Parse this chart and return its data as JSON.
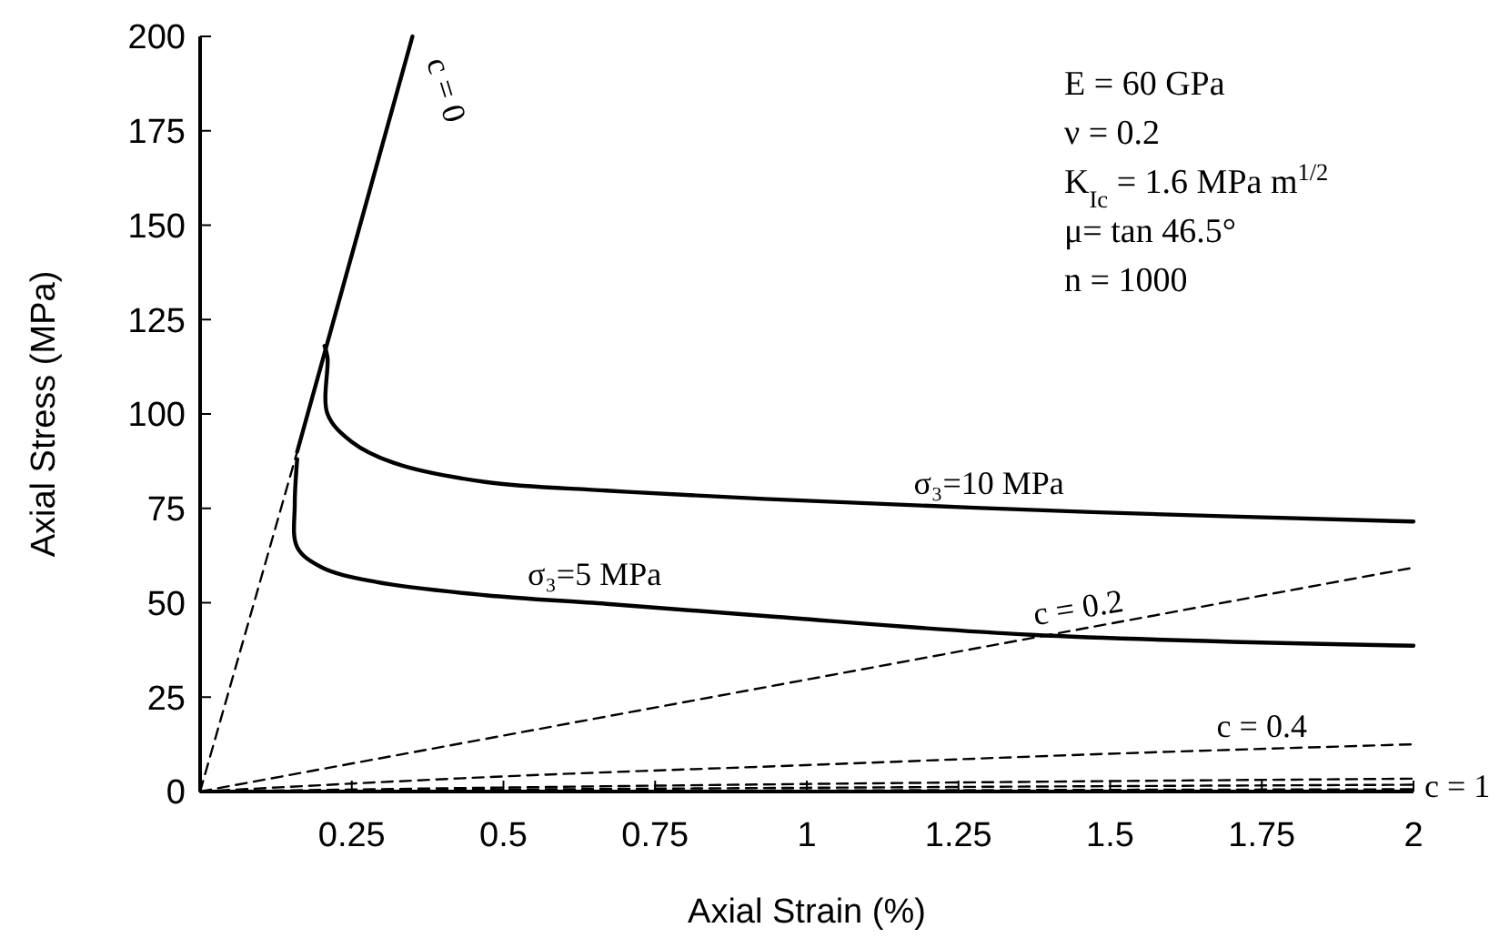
{
  "chart_data": {
    "type": "line",
    "xlabel": "Axial Strain (%)",
    "ylabel": "Axial Stress (MPa)",
    "xlim": [
      0,
      2
    ],
    "ylim": [
      0,
      200
    ],
    "xticks": [
      0.25,
      0.5,
      0.75,
      1,
      1.25,
      1.5,
      1.75,
      2
    ],
    "yticks": [
      0,
      25,
      50,
      75,
      100,
      125,
      150,
      175,
      200
    ],
    "grid": false,
    "marker": "none",
    "series": [
      {
        "color": "#000000",
        "line_style": "dashed",
        "x": [
          0,
          0.16
        ],
        "values": [
          0,
          90
        ]
      },
      {
        "name": "c = 0",
        "color": "#000000",
        "line_style": "solid",
        "x": [
          0.16,
          0.35
        ],
        "values": [
          90,
          200
        ]
      },
      {
        "name": "σ₃=10 MPa",
        "color": "#000000",
        "line_style": "solid",
        "x": [
          0.205,
          0.21,
          0.21,
          0.25,
          0.32,
          0.47,
          0.67,
          0.93,
          1.47,
          2
        ],
        "values": [
          118,
          115,
          100,
          92.6,
          87,
          82,
          79.7,
          77.5,
          74,
          71.5
        ]
      },
      {
        "name": "σ₃=5 MPa",
        "color": "#000000",
        "line_style": "solid",
        "x": [
          0.16,
          0.156,
          0.16,
          0.2,
          0.29,
          0.47,
          0.67,
          0.93,
          1.37,
          2
        ],
        "values": [
          88,
          76,
          64.7,
          59.4,
          55.5,
          52,
          49.7,
          46.5,
          41.5,
          38.6
        ]
      },
      {
        "name": "c = 0.2",
        "color": "#000000",
        "line_style": "dashed",
        "x": [
          0,
          2
        ],
        "values": [
          0,
          59.3
        ]
      },
      {
        "name": "c = 0.4",
        "color": "#000000",
        "line_style": "dashed",
        "x": [
          0,
          0.5,
          1,
          1.5,
          2
        ],
        "values": [
          0,
          4,
          7,
          10,
          12.5
        ]
      },
      {
        "color": "#000000",
        "line_style": "dashed",
        "x": [
          0,
          1,
          2
        ],
        "values": [
          0,
          2,
          3.4
        ]
      },
      {
        "color": "#000000",
        "line_style": "dashed",
        "x": [
          0,
          1,
          2
        ],
        "values": [
          0,
          1,
          1.8
        ]
      },
      {
        "name": "c = 1",
        "color": "#000000",
        "line_style": "dashed",
        "x": [
          0,
          1,
          2
        ],
        "values": [
          0,
          0.3,
          0.6
        ]
      }
    ],
    "annotations": [
      "E = 60 GPa",
      "ν = 0.2",
      "K$_{Ic}$ = 1.6 MPa m$^{1/2}$",
      "μ= tan 46.5°",
      "n = 1000"
    ]
  }
}
